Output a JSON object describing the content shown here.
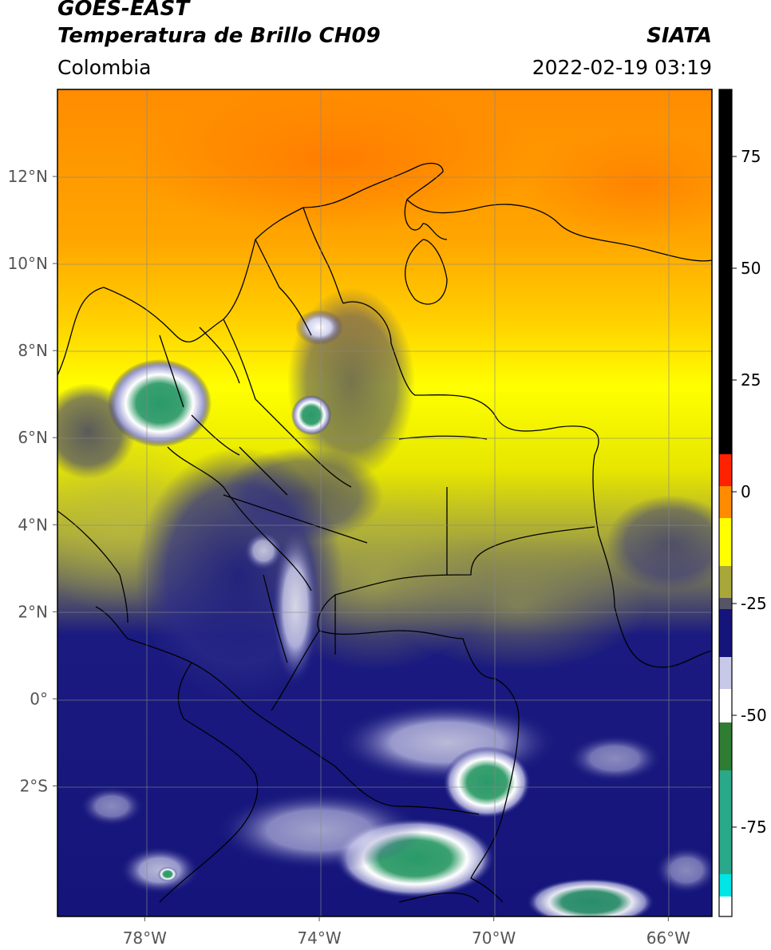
{
  "header": {
    "line1": "GOES-EAST",
    "line2": "Temperatura de Brillo CH09",
    "brand": "SIATA",
    "region": "Colombia",
    "timestamp": "2022-02-19 03:19"
  },
  "map": {
    "lon_range": [
      -80,
      -65
    ],
    "lat_range": [
      -5,
      14
    ],
    "lon_ticks": [
      {
        "value": -78,
        "label": "78°W"
      },
      {
        "value": -74,
        "label": "74°W"
      },
      {
        "value": -70,
        "label": "70°W"
      },
      {
        "value": -66,
        "label": "66°W"
      }
    ],
    "lat_ticks": [
      {
        "value": 12,
        "label": "12°N"
      },
      {
        "value": 10,
        "label": "10°N"
      },
      {
        "value": 8,
        "label": "8°N"
      },
      {
        "value": 6,
        "label": "6°N"
      },
      {
        "value": 4,
        "label": "4°N"
      },
      {
        "value": 2,
        "label": "2°N"
      },
      {
        "value": 0,
        "label": "0°"
      },
      {
        "value": -2,
        "label": "2°S"
      }
    ]
  },
  "colorbar": {
    "range": [
      -95,
      90
    ],
    "ticks": [
      {
        "value": 75,
        "label": "75"
      },
      {
        "value": 50,
        "label": "50"
      },
      {
        "value": 25,
        "label": "25"
      },
      {
        "value": 0,
        "label": "0"
      },
      {
        "value": -25,
        "label": "-25"
      },
      {
        "value": -50,
        "label": "-50"
      },
      {
        "value": -75,
        "label": "-75"
      }
    ],
    "colors": {
      "black": "#000000",
      "red": "#ff2200",
      "orange": "#ff8c00",
      "yellow": "#ffff00",
      "olive": "#a8a83a",
      "gray": "#555566",
      "navy": "#14147a",
      "blue": "#3c3ca6",
      "lavender": "#c8c8e8",
      "white": "#ffffff",
      "green": "#2e7d32",
      "teal": "#2aa88a",
      "cyan": "#00e5e5"
    }
  }
}
